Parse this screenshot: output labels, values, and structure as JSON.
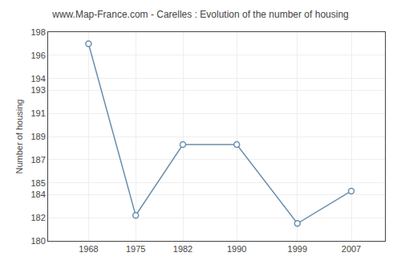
{
  "chart_data": {
    "type": "line",
    "title": "www.Map-France.com - Carelles : Evolution of the number of housing",
    "ylabel": "Number of housing",
    "x": [
      1968,
      1975,
      1982,
      1990,
      1999,
      2007
    ],
    "values": [
      197.0,
      182.2,
      188.3,
      188.3,
      181.5,
      184.3
    ],
    "color": "#6a8faf",
    "marker": "circle",
    "xlim": [
      1962,
      2012
    ],
    "xticks": [
      1968,
      1975,
      1982,
      1990,
      1999,
      2007
    ],
    "ylim": [
      180,
      198
    ],
    "yticks": [
      180,
      182,
      184,
      185,
      187,
      189,
      191,
      193,
      194,
      196,
      198
    ],
    "grid": true
  }
}
